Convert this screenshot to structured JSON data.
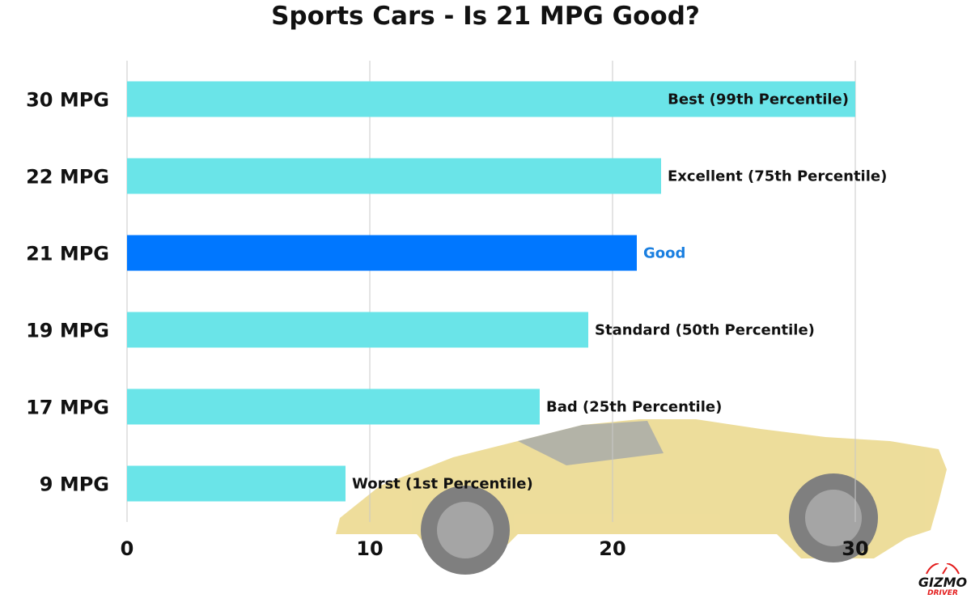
{
  "chart_data": {
    "type": "bar",
    "orientation": "horizontal",
    "title": "Sports Cars - Is 21 MPG Good?",
    "categories": [
      "30 MPG",
      "22 MPG",
      "21 MPG",
      "19 MPG",
      "17 MPG",
      "9 MPG"
    ],
    "values": [
      30,
      22,
      21,
      19,
      17,
      9
    ],
    "data_labels": [
      "Best (99th Percentile)",
      "Excellent (75th Percentile)",
      "Good",
      "Standard (50th Percentile)",
      "Bad (25th Percentile)",
      "Worst (1st Percentile)"
    ],
    "highlight_index": 2,
    "xlim": [
      0,
      30
    ],
    "xticks": [
      0,
      10,
      20,
      30
    ],
    "grid": true,
    "colors": {
      "bar": "#6ae4e8",
      "highlight": "#0077ff",
      "highlight_label": "#1a7fe0",
      "text": "#111111",
      "grid": "#c8c8c8",
      "car": "#e8d27a"
    }
  },
  "logo": {
    "line1": "GIZMO",
    "line2": "DRIVER"
  }
}
